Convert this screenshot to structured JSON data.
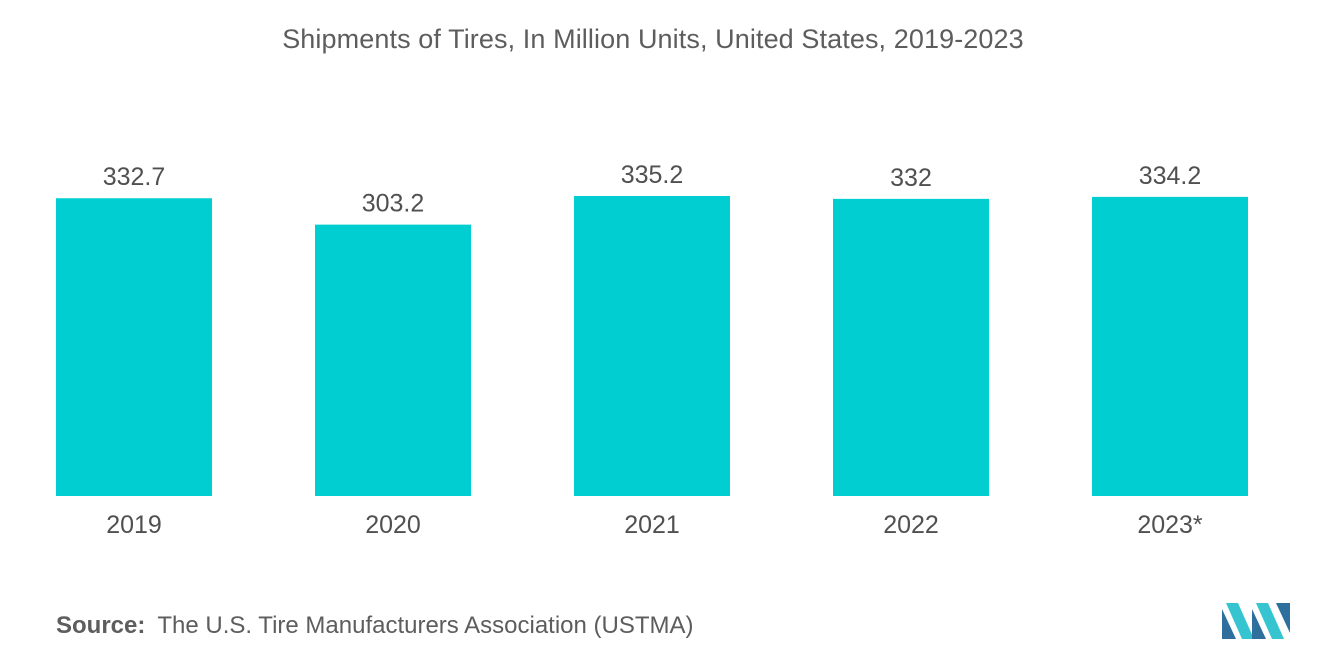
{
  "colors": {
    "bar": "#00CED1",
    "text": "#505050",
    "logo_dark": "#2e6f9e",
    "logo_light": "#36c5d0"
  },
  "chart_data": {
    "type": "bar",
    "title": "Shipments of Tires, In Million Units, United States, 2019-2023",
    "categories": [
      "2019",
      "2020",
      "2021",
      "2022",
      "2023*"
    ],
    "values": [
      332.7,
      303.2,
      335.2,
      332,
      334.2
    ],
    "value_labels": [
      "332.7",
      "303.2",
      "335.2",
      "332",
      "334.2"
    ],
    "xlabel": "",
    "ylabel": "",
    "ylim": [
      0,
      335.2
    ],
    "grid": false,
    "legend": "none"
  },
  "source": {
    "prefix": "Source:",
    "text": "The U.S. Tire Manufacturers Association (USTMA)"
  },
  "logo": {
    "icon": "mordor-intelligence-logo-icon"
  }
}
